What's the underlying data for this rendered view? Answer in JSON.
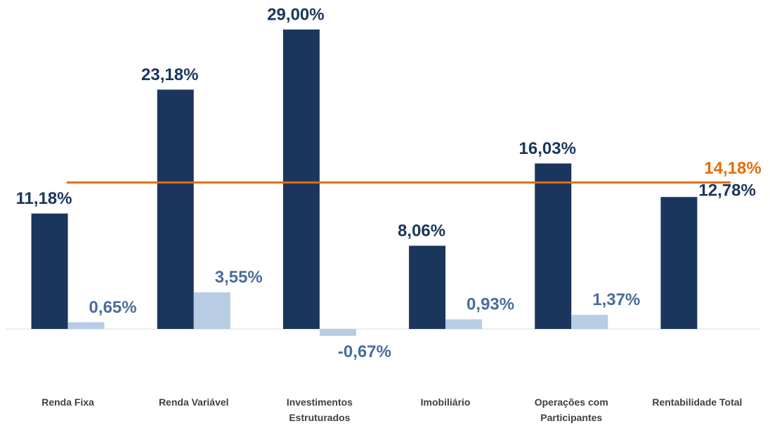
{
  "chart_data": {
    "type": "bar",
    "categories": [
      "Renda Fixa",
      "Renda Variável",
      "Investimentos Estruturados",
      "Imobiliário",
      "Operações com Participantes",
      "Rentabilidade Total"
    ],
    "series": [
      {
        "color": "#1b365d",
        "values": [
          11.18,
          23.18,
          29.0,
          8.06,
          16.03,
          12.78
        ],
        "value_labels": [
          "11,18%",
          "23,18%",
          "29,00%",
          "8,06%",
          "16,03%",
          "12,78%"
        ]
      },
      {
        "color": "#b8cce4",
        "values": [
          0.65,
          3.55,
          -0.67,
          0.93,
          1.37,
          null
        ],
        "value_labels": [
          "0,65%",
          "3,55%",
          "-0,67%",
          "0,93%",
          "1,37%",
          null
        ]
      }
    ],
    "reference_line": {
      "value": 14.18,
      "label": "14,18%",
      "color": "#e36c0a"
    },
    "ylim": [
      -5,
      30
    ]
  }
}
